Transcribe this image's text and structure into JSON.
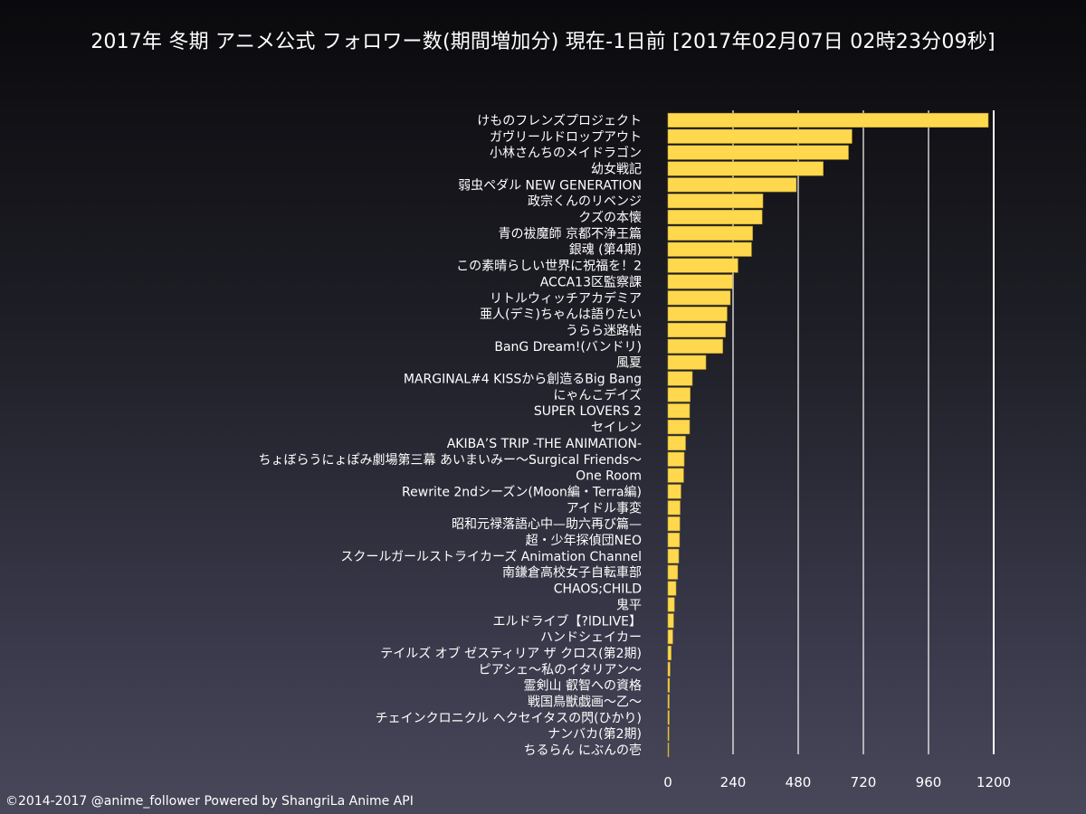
{
  "footer": {
    "credit": "©2014-2017 @anime_follower Powered by ShangriLa Anime API"
  },
  "colors": {
    "bar": "#ffd84e",
    "bar_edge": "#b89a2a",
    "grid": "#ffffff",
    "text": "#ffffff"
  },
  "chart_data": {
    "type": "bar",
    "orientation": "horizontal",
    "title": "2017年 冬期 アニメ公式 フォロワー数(期間増加分) 現在-1日前 [2017年02月07日 02時23分09秒]",
    "xlabel": "",
    "ylabel": "",
    "xlim": [
      0,
      1200
    ],
    "xticks": [
      0,
      240,
      480,
      720,
      960,
      1200
    ],
    "grid": true,
    "legend": "none",
    "categories": [
      "けものフレンズプロジェクト",
      "ガヴリールドロップアウト",
      "小林さんちのメイドラゴン",
      "幼女戦記",
      "弱虫ペダル NEW GENERATION",
      "政宗くんのリベンジ",
      "クズの本懐",
      "青の祓魔師 京都不浄王篇",
      "銀魂 (第4期)",
      "この素晴らしい世界に祝福を！2",
      "ACCA13区監察課",
      "リトルウィッチアカデミア",
      "亜人(デミ)ちゃんは語りたい",
      "うらら迷路帖",
      "BanG Dream!(バンドリ)",
      "風夏",
      "MARGINAL#4 KISSから創造るBig Bang",
      "にゃんこデイズ",
      "SUPER LOVERS 2",
      "セイレン",
      "AKIBA’S TRIP -THE ANIMATION-",
      "ちょぼらうにょぽみ劇場第三幕 あいまいみー～Surgical Friends～",
      "One Room",
      "Rewrite 2ndシーズン(Moon編・Terra編)",
      "アイドル事変",
      "昭和元禄落語心中—助六再び篇—",
      "超・少年探偵団NEO",
      "スクールガールストライカーズ Animation Channel",
      "南鎌倉高校女子自転車部",
      "CHAOS;CHILD",
      "鬼平",
      "エルドライブ【?lDLIVE】",
      "ハンドシェイカー",
      "テイルズ オブ ゼスティリア ザ クロス(第2期)",
      "ピアシェ～私のイタリアン～",
      "霊剣山 叡智への資格",
      "戦国鳥獣戯画～乙～",
      "チェインクロニクル ヘクセイタスの閃(ひかり)",
      "ナンバカ(第2期)",
      "ちるらん にぶんの壱"
    ],
    "values": [
      1180,
      678,
      665,
      572,
      473,
      350,
      347,
      312,
      308,
      258,
      238,
      230,
      218,
      212,
      202,
      140,
      90,
      82,
      80,
      80,
      65,
      60,
      58,
      48,
      45,
      44,
      43,
      40,
      36,
      30,
      24,
      21,
      18,
      12,
      8,
      6,
      5,
      5,
      4,
      3
    ]
  }
}
